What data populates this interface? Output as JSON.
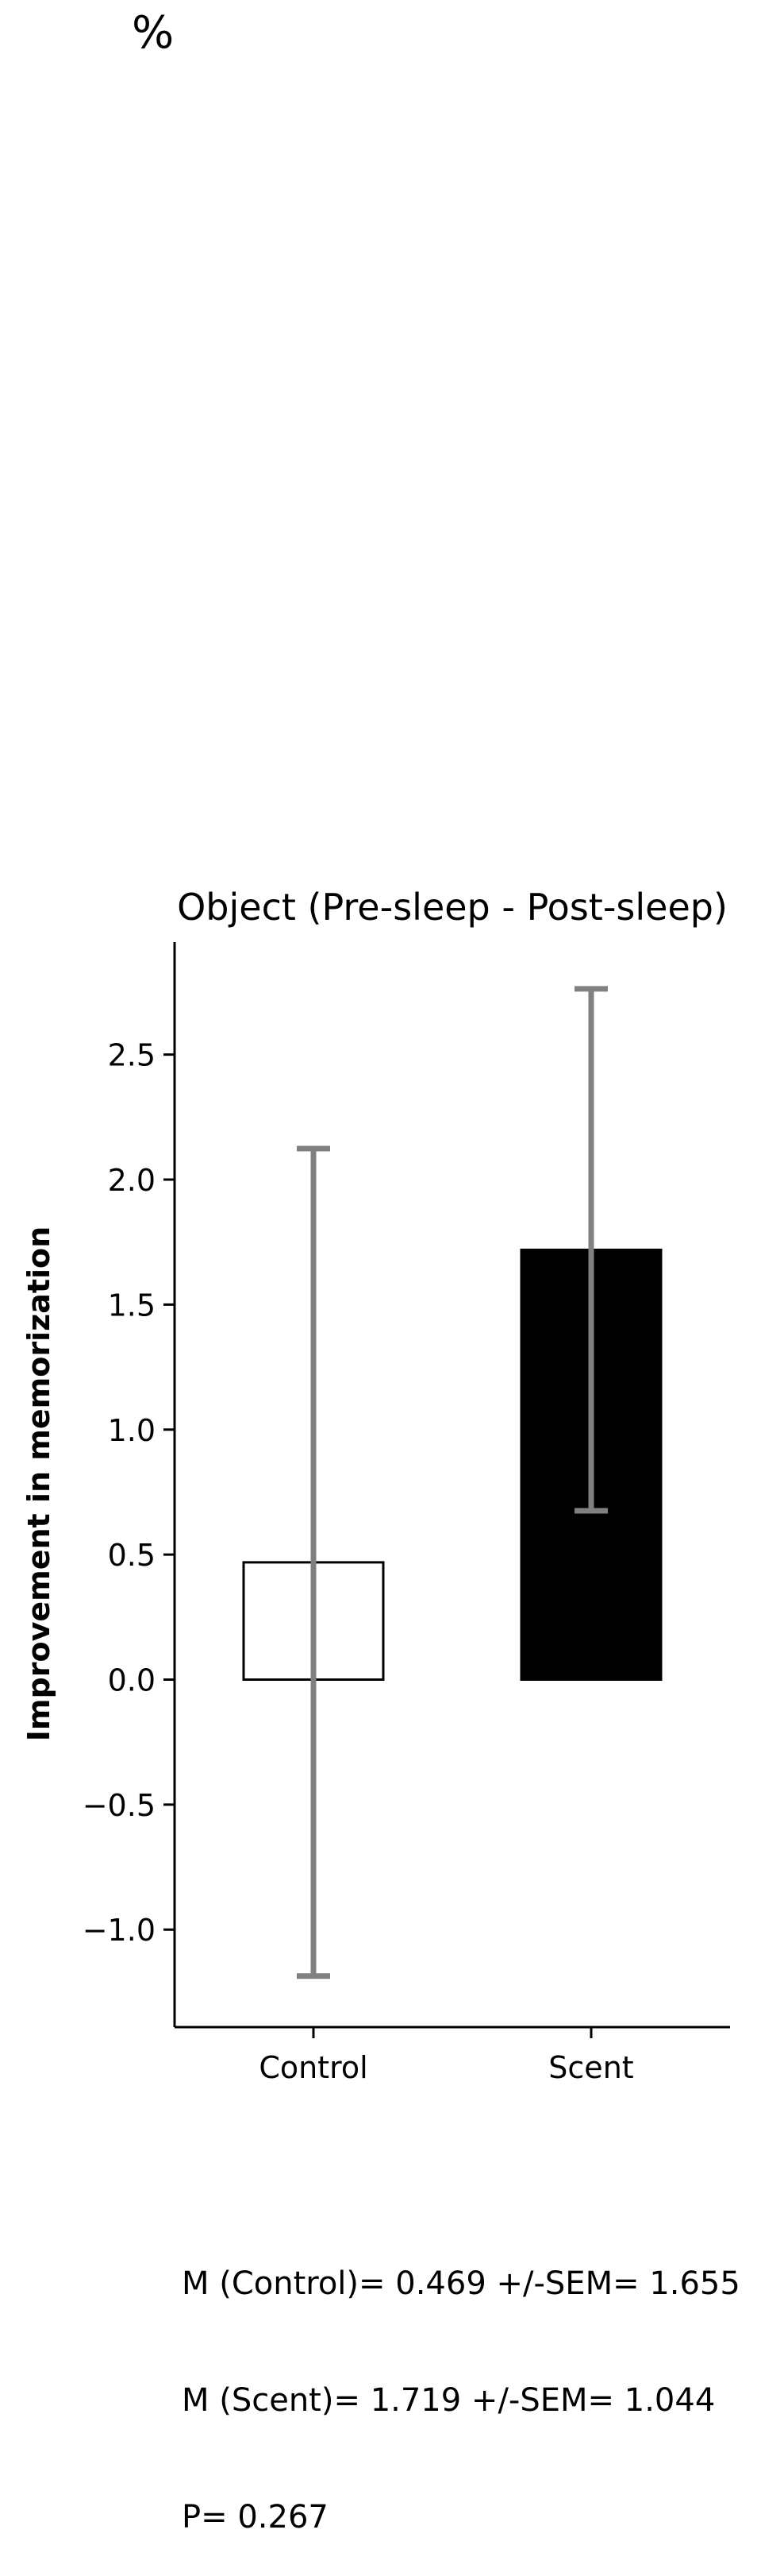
{
  "corner_text": "%",
  "chart_data": {
    "type": "bar",
    "title": "Object (Pre-sleep - Post-sleep)",
    "xlabel": "",
    "ylabel": "Improvement in memorization",
    "categories": [
      "Control",
      "Scent"
    ],
    "values": [
      0.469,
      1.719
    ],
    "errors": [
      1.655,
      1.044
    ],
    "bar_fill_colors": [
      "#ffffff",
      "#000000"
    ],
    "bar_edge_color": "#000000",
    "error_bar_color": "#808080",
    "ylim": [
      -1.39,
      2.95
    ],
    "yticks": [
      -1.0,
      -0.5,
      0.0,
      0.5,
      1.0,
      1.5,
      2.0,
      2.5
    ],
    "ytick_labels": [
      "−1.0",
      "−0.5",
      "0.0",
      "0.5",
      "1.0",
      "1.5",
      "2.0",
      "2.5"
    ],
    "grid": false,
    "legend": false
  },
  "stats": {
    "line1": "M (Control)= 0.469 +/-SEM= 1.655",
    "line2": "M (Scent)= 1.719 +/-SEM= 1.044",
    "line3": "P= 0.267"
  }
}
